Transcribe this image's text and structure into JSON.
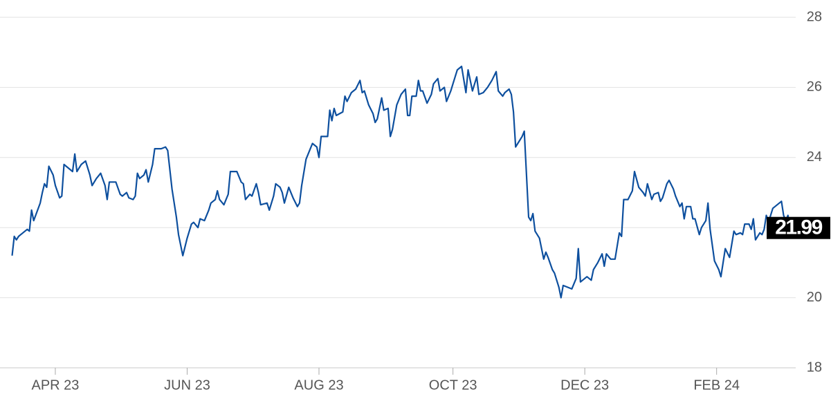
{
  "chart_data": {
    "type": "line",
    "color": "#0d4f9e",
    "grid": true,
    "x": [
      -20,
      -19,
      -18,
      -17,
      -16,
      -13,
      -12,
      -11,
      -10,
      -7,
      -6,
      -5,
      -4,
      -3,
      -1,
      0,
      2,
      3,
      4,
      6,
      8,
      9,
      10,
      12,
      14,
      16,
      17,
      19,
      21,
      23,
      24,
      25,
      28,
      30,
      31,
      33,
      34,
      36,
      37,
      38,
      39,
      41,
      42,
      43,
      45,
      46,
      49,
      51,
      52,
      54,
      56,
      57,
      59,
      61,
      63,
      64,
      66,
      67,
      69,
      71,
      72,
      74,
      75,
      76,
      78,
      80,
      81,
      84,
      86,
      87,
      88,
      90,
      91,
      93,
      94,
      95,
      98,
      99,
      101,
      102,
      104,
      105,
      106,
      108,
      110,
      112,
      113,
      114,
      116,
      118,
      119,
      121,
      122,
      123,
      126,
      127,
      128,
      129,
      130,
      133,
      134,
      135,
      137,
      139,
      141,
      142,
      143,
      145,
      147,
      148,
      149,
      151,
      152,
      154,
      155,
      156,
      158,
      160,
      162,
      163,
      164,
      165,
      167,
      168,
      169,
      170,
      172,
      174,
      175,
      177,
      178,
      180,
      181,
      183,
      184,
      186,
      188,
      190,
      191,
      193,
      195,
      196,
      198,
      200,
      202,
      204,
      205,
      207,
      208,
      210,
      211,
      212,
      213,
      214,
      216,
      217,
      219,
      220,
      221,
      222,
      224,
      226,
      227,
      228,
      230,
      231,
      233,
      234,
      235,
      237,
      239,
      241,
      242,
      243,
      245,
      246,
      248,
      249,
      251,
      253,
      254,
      255,
      257,
      259,
      261,
      262,
      263,
      265,
      267,
      268,
      270,
      272,
      273,
      274,
      276,
      277,
      279,
      280,
      281,
      283,
      284,
      286,
      287,
      289,
      290,
      291,
      292,
      294,
      295,
      296,
      298,
      299,
      301,
      302,
      303,
      305,
      307,
      308,
      310,
      312,
      314,
      315,
      317,
      318,
      319,
      321,
      322,
      323,
      324,
      326,
      327,
      328,
      329,
      330,
      332,
      333,
      335,
      336,
      337,
      338,
      339,
      340
    ],
    "values": [
      21.2,
      21.75,
      21.65,
      21.75,
      21.8,
      21.95,
      21.9,
      22.5,
      22.2,
      22.7,
      23.0,
      23.25,
      23.15,
      23.75,
      23.5,
      23.2,
      22.85,
      22.9,
      23.8,
      23.7,
      23.6,
      24.1,
      23.6,
      23.8,
      23.9,
      23.5,
      23.2,
      23.4,
      23.55,
      23.2,
      22.8,
      23.3,
      23.3,
      22.95,
      22.9,
      23.0,
      22.85,
      22.8,
      22.9,
      23.55,
      23.4,
      23.5,
      23.65,
      23.3,
      23.8,
      24.25,
      24.25,
      24.3,
      24.2,
      23.1,
      22.3,
      21.8,
      21.2,
      21.7,
      22.1,
      22.15,
      22.0,
      22.25,
      22.2,
      22.5,
      22.7,
      22.8,
      23.05,
      22.8,
      22.65,
      22.95,
      23.6,
      23.6,
      23.3,
      23.25,
      22.8,
      22.95,
      22.9,
      23.25,
      23.0,
      22.65,
      22.7,
      22.5,
      22.9,
      23.25,
      23.15,
      23.0,
      22.7,
      23.15,
      22.85,
      22.6,
      22.7,
      23.2,
      23.95,
      24.25,
      24.4,
      24.3,
      24.0,
      24.6,
      24.6,
      25.35,
      25.05,
      25.4,
      25.2,
      25.3,
      25.75,
      25.6,
      25.85,
      25.95,
      26.2,
      25.85,
      25.9,
      25.5,
      25.25,
      25.0,
      25.1,
      25.7,
      25.35,
      25.4,
      24.6,
      24.8,
      25.5,
      25.8,
      25.95,
      25.2,
      25.2,
      25.75,
      25.75,
      26.2,
      25.9,
      25.9,
      25.55,
      25.8,
      26.1,
      26.25,
      25.9,
      26.0,
      25.6,
      25.9,
      26.1,
      26.5,
      26.6,
      25.85,
      26.5,
      25.9,
      26.3,
      25.8,
      25.85,
      26.0,
      26.2,
      26.45,
      25.9,
      25.75,
      25.85,
      25.95,
      25.8,
      25.3,
      24.3,
      24.4,
      24.6,
      24.75,
      22.3,
      22.2,
      22.4,
      21.9,
      21.7,
      21.1,
      21.3,
      21.15,
      20.8,
      20.7,
      20.3,
      20.0,
      20.35,
      20.3,
      20.25,
      20.55,
      21.4,
      20.45,
      20.55,
      20.6,
      20.5,
      20.8,
      21.0,
      21.25,
      20.9,
      21.25,
      21.1,
      21.1,
      21.85,
      21.75,
      22.8,
      22.8,
      23.05,
      23.6,
      23.15,
      23.0,
      22.9,
      23.25,
      22.8,
      22.95,
      23.0,
      22.75,
      22.85,
      23.25,
      23.35,
      23.1,
      22.9,
      22.6,
      22.7,
      22.25,
      22.6,
      22.6,
      22.25,
      22.25,
      21.8,
      22.0,
      22.2,
      22.7,
      21.95,
      21.05,
      20.8,
      20.6,
      21.4,
      21.15,
      21.9,
      21.8,
      21.85,
      21.8,
      22.1,
      22.1,
      21.95,
      22.25,
      21.65,
      21.85,
      21.8,
      21.95,
      22.35,
      22.15,
      22.55,
      22.6,
      22.7,
      22.75,
      22.35,
      22.2,
      22.35,
      21.99
    ],
    "xlim": [
      -24,
      341
    ],
    "xticks": [
      {
        "value": 0,
        "label": "APR 23"
      },
      {
        "value": 61,
        "label": "JUN 23"
      },
      {
        "value": 122,
        "label": "AUG 23"
      },
      {
        "value": 184,
        "label": "OCT 23"
      },
      {
        "value": 245,
        "label": "DEC 23"
      },
      {
        "value": 306,
        "label": "FEB 24"
      }
    ],
    "ylim": [
      18,
      28
    ],
    "yticks": [
      18,
      20,
      22,
      24,
      26,
      28
    ]
  }
}
